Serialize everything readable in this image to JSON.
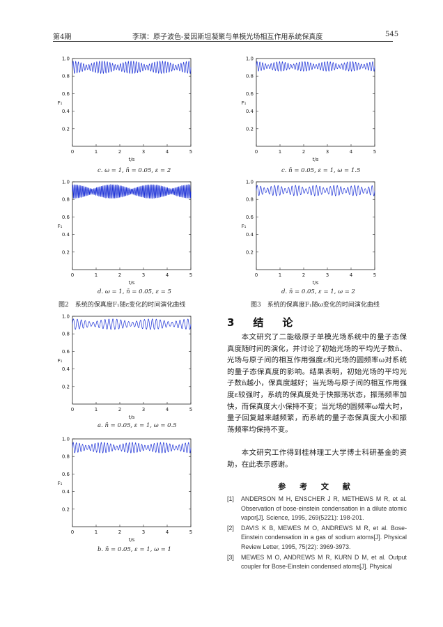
{
  "header": {
    "issue": "第4期",
    "running_title": "李琪：原子波色-爱因斯坦凝聚与单模光场相互作用系统保真度",
    "page_number": "545"
  },
  "colors": {
    "curve": "#1a2fd6",
    "axis": "#222222"
  },
  "subplots": [
    {
      "caption": "c. ω = 1, n̄ = 0.05, ε = 2",
      "ylabel": "F₁",
      "xlabel": "t/s"
    },
    {
      "caption": "d. ω = 1, n̄ = 0.05, ε = 5",
      "ylabel": "F₁",
      "xlabel": "t/s"
    },
    {
      "caption": "a. n̄ = 0.05, ε = 1, ω = 0.5",
      "ylabel": "F₁",
      "xlabel": "t/s"
    },
    {
      "caption": "b. n̄ = 0.05, ε = 1, ω = 1",
      "ylabel": "F₁",
      "xlabel": "t/s"
    },
    {
      "caption": "c. n̄ = 0.05, ε = 1, ω = 1.5",
      "ylabel": "F₁",
      "xlabel": "t/s"
    },
    {
      "caption": "d. n̄ = 0.05, ε = 1, ω = 2",
      "ylabel": "F₁",
      "xlabel": "t/s"
    }
  ],
  "figures": {
    "fig2": "图2　系统的保真度F₁随ε变化的时间演化曲线",
    "fig3": "图3　系统的保真度F₁随ω变化的时间演化曲线"
  },
  "chart_data": [
    {
      "type": "line",
      "title": "",
      "xlabel": "t/s",
      "ylabel": "F₁",
      "xlim": [
        0,
        5
      ],
      "ylim": [
        0,
        1.0
      ],
      "x_ticks": [
        0,
        1,
        2,
        3,
        4,
        5
      ],
      "y_ticks": [
        0.2,
        0.4,
        0.6,
        0.8,
        1.0
      ],
      "series": [
        {
          "name": "",
          "amplitude": 0.07,
          "center": 0.9,
          "oscillations": 45,
          "beats": 4
        }
      ]
    },
    {
      "type": "line",
      "title": "",
      "xlabel": "t/s",
      "ylabel": "F₁",
      "xlim": [
        0,
        5
      ],
      "ylim": [
        0,
        1.0
      ],
      "x_ticks": [
        0,
        1,
        2,
        3,
        4,
        5
      ],
      "y_ticks": [
        0.2,
        0.4,
        0.6,
        0.8,
        1.0
      ],
      "series": [
        {
          "name": "",
          "amplitude": 0.08,
          "center": 0.89,
          "oscillations": 95,
          "beats": 3
        }
      ]
    },
    {
      "type": "line",
      "title": "",
      "xlabel": "t/s",
      "ylabel": "F₁",
      "xlim": [
        0,
        5
      ],
      "ylim": [
        0,
        1.0
      ],
      "x_ticks": [
        0,
        1,
        2,
        3,
        4,
        5
      ],
      "y_ticks": [
        0.2,
        0.4,
        0.6,
        0.8,
        1.0
      ],
      "series": [
        {
          "name": "",
          "amplitude": 0.06,
          "center": 0.91,
          "oscillations": 30,
          "beats": 3
        }
      ]
    },
    {
      "type": "line",
      "title": "",
      "xlabel": "t/s",
      "ylabel": "F₁",
      "xlim": [
        0,
        5
      ],
      "ylim": [
        0,
        1.0
      ],
      "x_ticks": [
        0,
        1,
        2,
        3,
        4,
        5
      ],
      "y_ticks": [
        0.2,
        0.4,
        0.6,
        0.8,
        1.0
      ],
      "series": [
        {
          "name": "",
          "amplitude": 0.06,
          "center": 0.9,
          "oscillations": 38,
          "beats": 4
        }
      ]
    },
    {
      "type": "line",
      "title": "",
      "xlabel": "t/s",
      "ylabel": "F₁",
      "xlim": [
        0,
        5
      ],
      "ylim": [
        0,
        1.0
      ],
      "x_ticks": [
        0,
        1,
        2,
        3,
        4,
        5
      ],
      "y_ticks": [
        0.2,
        0.4,
        0.6,
        0.8,
        1.0
      ],
      "series": [
        {
          "name": "",
          "amplitude": 0.055,
          "center": 0.91,
          "oscillations": 42,
          "beats": 5
        }
      ]
    },
    {
      "type": "line",
      "title": "",
      "xlabel": "t/s",
      "ylabel": "F₁",
      "xlim": [
        0,
        5
      ],
      "ylim": [
        0,
        1.0
      ],
      "x_ticks": [
        0,
        1,
        2,
        3,
        4,
        5
      ],
      "y_ticks": [
        0.2,
        0.4,
        0.6,
        0.8,
        1.0
      ],
      "series": [
        {
          "name": "",
          "amplitude": 0.06,
          "center": 0.9,
          "oscillations": 34,
          "beats": 6
        }
      ]
    }
  ],
  "section": {
    "title": "3　结　论",
    "paragraphs": [
      "本文研究了二能级原子单模光场系统中的量子态保真度随时间的演化，并讨论了初始光场的平均光子数n̄、光场与原子间的相互作用强度ε和光场的圆频率ω对系统的量子态保真度的影响。结果表明，初始光场的平均光子数n̄越小，保真度越好；当光场与原子间的相互作用强度ε较强时，系统的保真度处于快振荡状态，振荡频率加快，而保真度大小保持不变；当光场的圆频率ω增大时，量子回复越来越频繁，而系统的量子态保真度大小和振荡频率均保持不变。",
      "本文研究工作得到桂林理工大学博士科研基金的资助，在此表示感谢。"
    ]
  },
  "references": {
    "title": "参 考 文 献",
    "items": [
      {
        "num": "[1]",
        "text": "ANDERSON M H, ENSCHER J R, METHEWS M R, et al. Observation of bose-einstein condensation in a dilute atomic vapor[J]. Science, 1995, 269(5221): 198-201."
      },
      {
        "num": "[2]",
        "text": "DAVIS K B, MEWES M O, ANDREWS M R, et al. Bose-Einstein condensation in a gas of sodium atoms[J]. Physical Review Letter, 1995, 75(22): 3969-3973."
      },
      {
        "num": "[3]",
        "text": "MEWES M O, ANDREWS M R, KURN D M, et al. Output coupler for Bose-Einstein condensed atoms[J]. Physical"
      }
    ]
  }
}
